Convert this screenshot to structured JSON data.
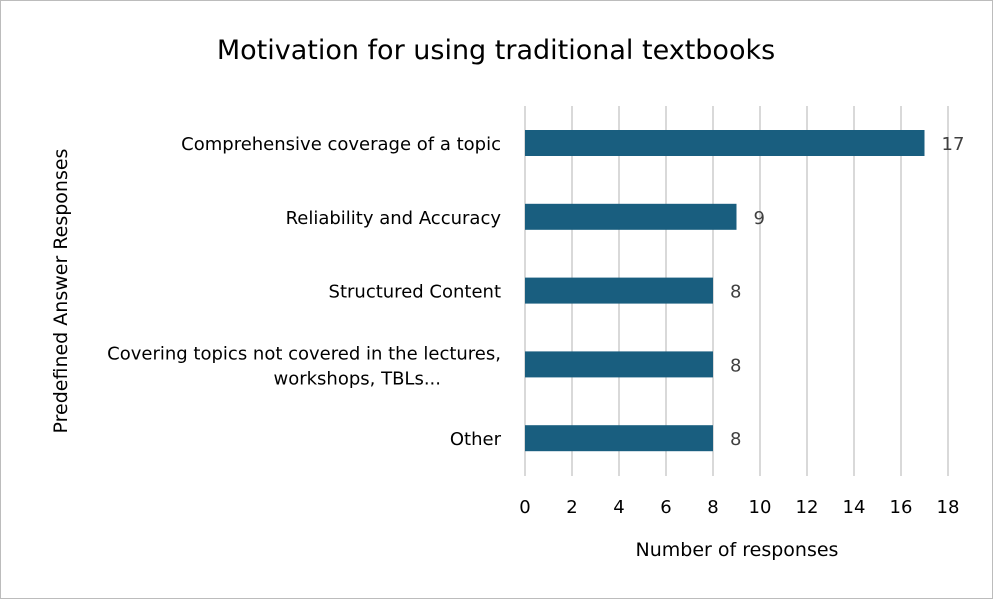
{
  "chart_data": {
    "type": "bar",
    "orientation": "horizontal",
    "title": "Motivation for using traditional textbooks",
    "xlabel": "Number of responses",
    "ylabel": "Predefined Answer Responses",
    "categories": [
      [
        "Comprehensive coverage of a topic"
      ],
      [
        "Reliability and Accuracy"
      ],
      [
        "Structured Content"
      ],
      [
        "Covering topics not covered in the lectures,",
        "workshops, TBLs..."
      ],
      [
        "Other"
      ]
    ],
    "values": [
      17,
      9,
      8,
      8,
      8
    ],
    "value_labels": [
      "17",
      "9",
      "8",
      "8",
      "8"
    ],
    "xlim": [
      0,
      18
    ],
    "xticks": [
      "0",
      "2",
      "4",
      "6",
      "8",
      "10",
      "12",
      "14",
      "16",
      "18"
    ],
    "grid": true,
    "bar_color": "#195e7f",
    "grid_color": "#d9d9d9"
  }
}
